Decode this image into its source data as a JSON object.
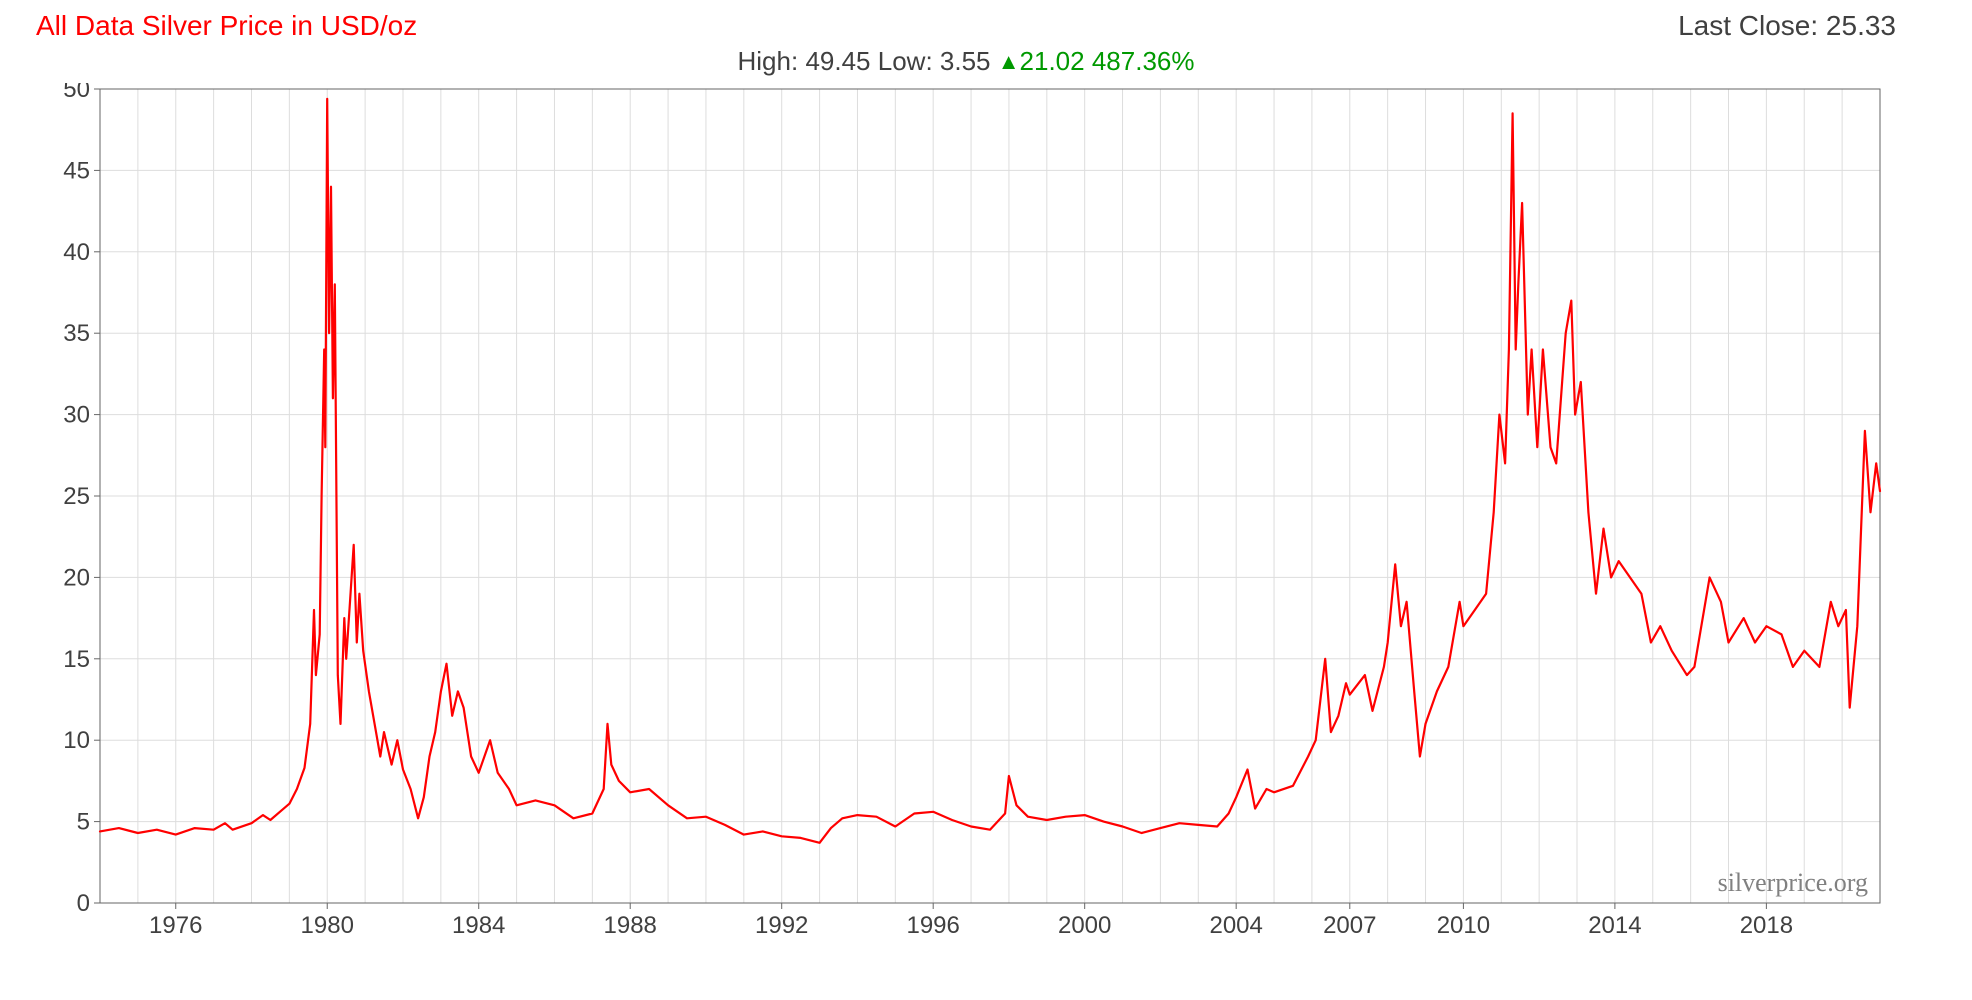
{
  "header": {
    "title": "All Data Silver Price in USD/oz",
    "last_close_label": "Last Close:",
    "last_close_value": "25.33"
  },
  "subheader": {
    "high_label": "High:",
    "high_value": "49.45",
    "low_label": "Low:",
    "low_value": "3.55",
    "change_abs": "21.02",
    "change_pct": "487.36%"
  },
  "chart": {
    "type": "line",
    "watermark": "silverprice.org",
    "line_color": "#ff0000",
    "line_width": 2.2,
    "background_color": "#ffffff",
    "grid_color": "#dddddd",
    "axis_color": "#666666",
    "tick_font_size": 24,
    "y": {
      "min": 0,
      "max": 50,
      "ticks": [
        0,
        5,
        10,
        15,
        20,
        25,
        30,
        35,
        40,
        45,
        50
      ]
    },
    "x": {
      "min": 1974,
      "max": 2021,
      "tick_labels": [
        1976,
        1980,
        1984,
        1988,
        1992,
        1996,
        2000,
        2004,
        2007,
        2010,
        2014,
        2018
      ],
      "minor_step": 1
    },
    "series": [
      {
        "x": 1974.0,
        "y": 4.4
      },
      {
        "x": 1974.5,
        "y": 4.6
      },
      {
        "x": 1975.0,
        "y": 4.3
      },
      {
        "x": 1975.5,
        "y": 4.5
      },
      {
        "x": 1976.0,
        "y": 4.2
      },
      {
        "x": 1976.5,
        "y": 4.6
      },
      {
        "x": 1977.0,
        "y": 4.5
      },
      {
        "x": 1977.3,
        "y": 4.9
      },
      {
        "x": 1977.5,
        "y": 4.5
      },
      {
        "x": 1978.0,
        "y": 4.9
      },
      {
        "x": 1978.3,
        "y": 5.4
      },
      {
        "x": 1978.5,
        "y": 5.1
      },
      {
        "x": 1978.8,
        "y": 5.7
      },
      {
        "x": 1979.0,
        "y": 6.1
      },
      {
        "x": 1979.2,
        "y": 7.0
      },
      {
        "x": 1979.4,
        "y": 8.3
      },
      {
        "x": 1979.55,
        "y": 11.0
      },
      {
        "x": 1979.65,
        "y": 18.0
      },
      {
        "x": 1979.7,
        "y": 14.0
      },
      {
        "x": 1979.8,
        "y": 16.5
      },
      {
        "x": 1979.85,
        "y": 25.0
      },
      {
        "x": 1979.92,
        "y": 34.0
      },
      {
        "x": 1979.95,
        "y": 28.0
      },
      {
        "x": 1980.0,
        "y": 49.4
      },
      {
        "x": 1980.05,
        "y": 35.0
      },
      {
        "x": 1980.1,
        "y": 44.0
      },
      {
        "x": 1980.15,
        "y": 31.0
      },
      {
        "x": 1980.2,
        "y": 38.0
      },
      {
        "x": 1980.28,
        "y": 14.0
      },
      {
        "x": 1980.35,
        "y": 11.0
      },
      {
        "x": 1980.45,
        "y": 17.5
      },
      {
        "x": 1980.5,
        "y": 15.0
      },
      {
        "x": 1980.6,
        "y": 18.5
      },
      {
        "x": 1980.7,
        "y": 22.0
      },
      {
        "x": 1980.78,
        "y": 16.0
      },
      {
        "x": 1980.85,
        "y": 19.0
      },
      {
        "x": 1980.95,
        "y": 15.5
      },
      {
        "x": 1981.1,
        "y": 13.0
      },
      {
        "x": 1981.25,
        "y": 11.0
      },
      {
        "x": 1981.4,
        "y": 9.0
      },
      {
        "x": 1981.5,
        "y": 10.5
      },
      {
        "x": 1981.7,
        "y": 8.5
      },
      {
        "x": 1981.85,
        "y": 10.0
      },
      {
        "x": 1982.0,
        "y": 8.2
      },
      {
        "x": 1982.2,
        "y": 7.0
      },
      {
        "x": 1982.4,
        "y": 5.2
      },
      {
        "x": 1982.55,
        "y": 6.5
      },
      {
        "x": 1982.7,
        "y": 9.0
      },
      {
        "x": 1982.85,
        "y": 10.5
      },
      {
        "x": 1983.0,
        "y": 13.0
      },
      {
        "x": 1983.15,
        "y": 14.7
      },
      {
        "x": 1983.3,
        "y": 11.5
      },
      {
        "x": 1983.45,
        "y": 13.0
      },
      {
        "x": 1983.6,
        "y": 12.0
      },
      {
        "x": 1983.8,
        "y": 9.0
      },
      {
        "x": 1984.0,
        "y": 8.0
      },
      {
        "x": 1984.3,
        "y": 10.0
      },
      {
        "x": 1984.5,
        "y": 8.0
      },
      {
        "x": 1984.8,
        "y": 7.0
      },
      {
        "x": 1985.0,
        "y": 6.0
      },
      {
        "x": 1985.5,
        "y": 6.3
      },
      {
        "x": 1986.0,
        "y": 6.0
      },
      {
        "x": 1986.5,
        "y": 5.2
      },
      {
        "x": 1987.0,
        "y": 5.5
      },
      {
        "x": 1987.3,
        "y": 7.0
      },
      {
        "x": 1987.4,
        "y": 11.0
      },
      {
        "x": 1987.5,
        "y": 8.5
      },
      {
        "x": 1987.7,
        "y": 7.5
      },
      {
        "x": 1988.0,
        "y": 6.8
      },
      {
        "x": 1988.5,
        "y": 7.0
      },
      {
        "x": 1989.0,
        "y": 6.0
      },
      {
        "x": 1989.5,
        "y": 5.2
      },
      {
        "x": 1990.0,
        "y": 5.3
      },
      {
        "x": 1990.5,
        "y": 4.8
      },
      {
        "x": 1991.0,
        "y": 4.2
      },
      {
        "x": 1991.5,
        "y": 4.4
      },
      {
        "x": 1992.0,
        "y": 4.1
      },
      {
        "x": 1992.5,
        "y": 4.0
      },
      {
        "x": 1993.0,
        "y": 3.7
      },
      {
        "x": 1993.3,
        "y": 4.6
      },
      {
        "x": 1993.6,
        "y": 5.2
      },
      {
        "x": 1994.0,
        "y": 5.4
      },
      {
        "x": 1994.5,
        "y": 5.3
      },
      {
        "x": 1995.0,
        "y": 4.7
      },
      {
        "x": 1995.5,
        "y": 5.5
      },
      {
        "x": 1996.0,
        "y": 5.6
      },
      {
        "x": 1996.5,
        "y": 5.1
      },
      {
        "x": 1997.0,
        "y": 4.7
      },
      {
        "x": 1997.5,
        "y": 4.5
      },
      {
        "x": 1997.9,
        "y": 5.5
      },
      {
        "x": 1998.0,
        "y": 7.8
      },
      {
        "x": 1998.2,
        "y": 6.0
      },
      {
        "x": 1998.5,
        "y": 5.3
      },
      {
        "x": 1999.0,
        "y": 5.1
      },
      {
        "x": 1999.5,
        "y": 5.3
      },
      {
        "x": 2000.0,
        "y": 5.4
      },
      {
        "x": 2000.5,
        "y": 5.0
      },
      {
        "x": 2001.0,
        "y": 4.7
      },
      {
        "x": 2001.5,
        "y": 4.3
      },
      {
        "x": 2002.0,
        "y": 4.6
      },
      {
        "x": 2002.5,
        "y": 4.9
      },
      {
        "x": 2003.0,
        "y": 4.8
      },
      {
        "x": 2003.5,
        "y": 4.7
      },
      {
        "x": 2003.8,
        "y": 5.5
      },
      {
        "x": 2004.0,
        "y": 6.5
      },
      {
        "x": 2004.3,
        "y": 8.2
      },
      {
        "x": 2004.5,
        "y": 5.8
      },
      {
        "x": 2004.8,
        "y": 7.0
      },
      {
        "x": 2005.0,
        "y": 6.8
      },
      {
        "x": 2005.5,
        "y": 7.2
      },
      {
        "x": 2005.9,
        "y": 9.0
      },
      {
        "x": 2006.1,
        "y": 10.0
      },
      {
        "x": 2006.35,
        "y": 15.0
      },
      {
        "x": 2006.5,
        "y": 10.5
      },
      {
        "x": 2006.7,
        "y": 11.5
      },
      {
        "x": 2006.9,
        "y": 13.5
      },
      {
        "x": 2007.0,
        "y": 12.8
      },
      {
        "x": 2007.4,
        "y": 14.0
      },
      {
        "x": 2007.6,
        "y": 11.8
      },
      {
        "x": 2007.9,
        "y": 14.5
      },
      {
        "x": 2008.0,
        "y": 16.0
      },
      {
        "x": 2008.2,
        "y": 20.8
      },
      {
        "x": 2008.35,
        "y": 17.0
      },
      {
        "x": 2008.5,
        "y": 18.5
      },
      {
        "x": 2008.7,
        "y": 13.0
      },
      {
        "x": 2008.85,
        "y": 9.0
      },
      {
        "x": 2009.0,
        "y": 11.0
      },
      {
        "x": 2009.3,
        "y": 13.0
      },
      {
        "x": 2009.6,
        "y": 14.5
      },
      {
        "x": 2009.9,
        "y": 18.5
      },
      {
        "x": 2010.0,
        "y": 17.0
      },
      {
        "x": 2010.3,
        "y": 18.0
      },
      {
        "x": 2010.6,
        "y": 19.0
      },
      {
        "x": 2010.8,
        "y": 24.0
      },
      {
        "x": 2010.95,
        "y": 30.0
      },
      {
        "x": 2011.1,
        "y": 27.0
      },
      {
        "x": 2011.2,
        "y": 34.0
      },
      {
        "x": 2011.3,
        "y": 48.5
      },
      {
        "x": 2011.38,
        "y": 34.0
      },
      {
        "x": 2011.45,
        "y": 38.0
      },
      {
        "x": 2011.55,
        "y": 43.0
      },
      {
        "x": 2011.7,
        "y": 30.0
      },
      {
        "x": 2011.8,
        "y": 34.0
      },
      {
        "x": 2011.95,
        "y": 28.0
      },
      {
        "x": 2012.1,
        "y": 34.0
      },
      {
        "x": 2012.3,
        "y": 28.0
      },
      {
        "x": 2012.45,
        "y": 27.0
      },
      {
        "x": 2012.7,
        "y": 35.0
      },
      {
        "x": 2012.85,
        "y": 37.0
      },
      {
        "x": 2012.95,
        "y": 30.0
      },
      {
        "x": 2013.1,
        "y": 32.0
      },
      {
        "x": 2013.3,
        "y": 24.0
      },
      {
        "x": 2013.5,
        "y": 19.0
      },
      {
        "x": 2013.7,
        "y": 23.0
      },
      {
        "x": 2013.9,
        "y": 20.0
      },
      {
        "x": 2014.1,
        "y": 21.0
      },
      {
        "x": 2014.4,
        "y": 20.0
      },
      {
        "x": 2014.7,
        "y": 19.0
      },
      {
        "x": 2014.95,
        "y": 16.0
      },
      {
        "x": 2015.2,
        "y": 17.0
      },
      {
        "x": 2015.5,
        "y": 15.5
      },
      {
        "x": 2015.9,
        "y": 14.0
      },
      {
        "x": 2016.1,
        "y": 14.5
      },
      {
        "x": 2016.5,
        "y": 20.0
      },
      {
        "x": 2016.8,
        "y": 18.5
      },
      {
        "x": 2017.0,
        "y": 16.0
      },
      {
        "x": 2017.4,
        "y": 17.5
      },
      {
        "x": 2017.7,
        "y": 16.0
      },
      {
        "x": 2018.0,
        "y": 17.0
      },
      {
        "x": 2018.4,
        "y": 16.5
      },
      {
        "x": 2018.7,
        "y": 14.5
      },
      {
        "x": 2019.0,
        "y": 15.5
      },
      {
        "x": 2019.4,
        "y": 14.5
      },
      {
        "x": 2019.7,
        "y": 18.5
      },
      {
        "x": 2019.9,
        "y": 17.0
      },
      {
        "x": 2020.1,
        "y": 18.0
      },
      {
        "x": 2020.2,
        "y": 12.0
      },
      {
        "x": 2020.4,
        "y": 17.0
      },
      {
        "x": 2020.6,
        "y": 29.0
      },
      {
        "x": 2020.75,
        "y": 24.0
      },
      {
        "x": 2020.9,
        "y": 27.0
      },
      {
        "x": 2021.0,
        "y": 25.3
      }
    ]
  }
}
